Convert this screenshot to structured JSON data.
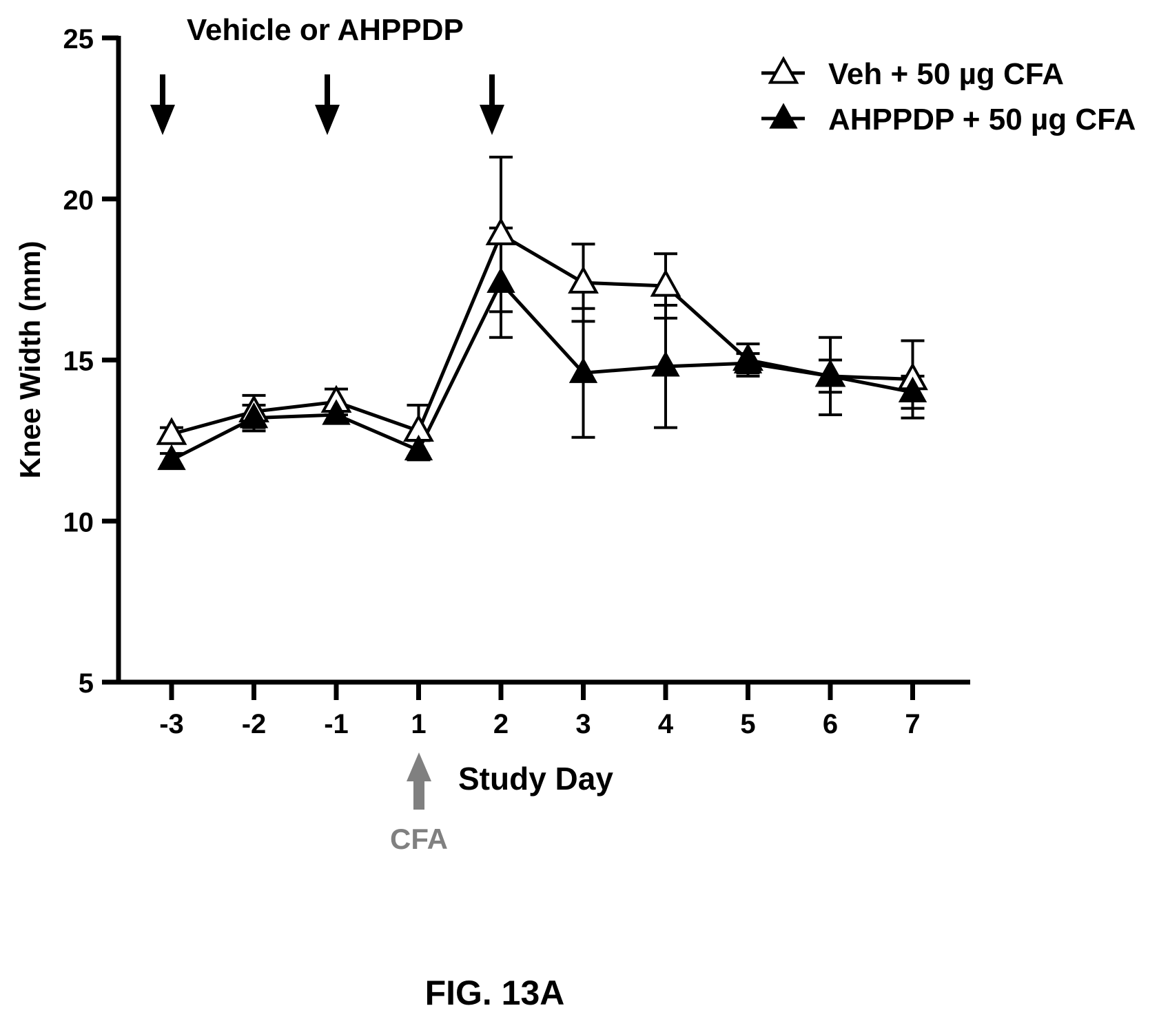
{
  "figure_label": "FIG. 13A",
  "chart_data": {
    "type": "line",
    "title": "",
    "xlabel": "Study Day",
    "ylabel": "Knee Width (mm)",
    "categories": [
      "-3",
      "-2",
      "-1",
      "1",
      "2",
      "3",
      "4",
      "5",
      "6",
      "7"
    ],
    "ylim": [
      5,
      25
    ],
    "yticks": [
      "5",
      "10",
      "15",
      "20",
      "25"
    ],
    "grid": false,
    "legend_position": "top-right",
    "series": [
      {
        "name": "Veh + 50 µg CFA",
        "marker": "open-triangle",
        "values": [
          12.7,
          13.4,
          13.7,
          12.8,
          18.9,
          17.4,
          17.3,
          15.0,
          14.5,
          14.4
        ],
        "error": [
          0.2,
          0.5,
          0.4,
          0.8,
          2.4,
          1.2,
          1.0,
          0.5,
          1.2,
          1.2
        ]
      },
      {
        "name": "AHPPDP + 50 µg CFA",
        "marker": "filled-triangle",
        "values": [
          11.9,
          13.2,
          13.3,
          12.2,
          17.4,
          14.6,
          14.8,
          14.9,
          14.5,
          14.0
        ],
        "error": [
          0.2,
          0.4,
          0.2,
          0.3,
          1.7,
          2.0,
          1.9,
          0.3,
          0.5,
          0.5
        ]
      }
    ],
    "annotations": {
      "dosing_label": "Vehicle or AHPPDP",
      "dosing_days": [
        "-3",
        "-1",
        "2"
      ],
      "cfa_label": "CFA",
      "cfa_day": "1",
      "cfa_arrow_color": "#808080"
    }
  }
}
